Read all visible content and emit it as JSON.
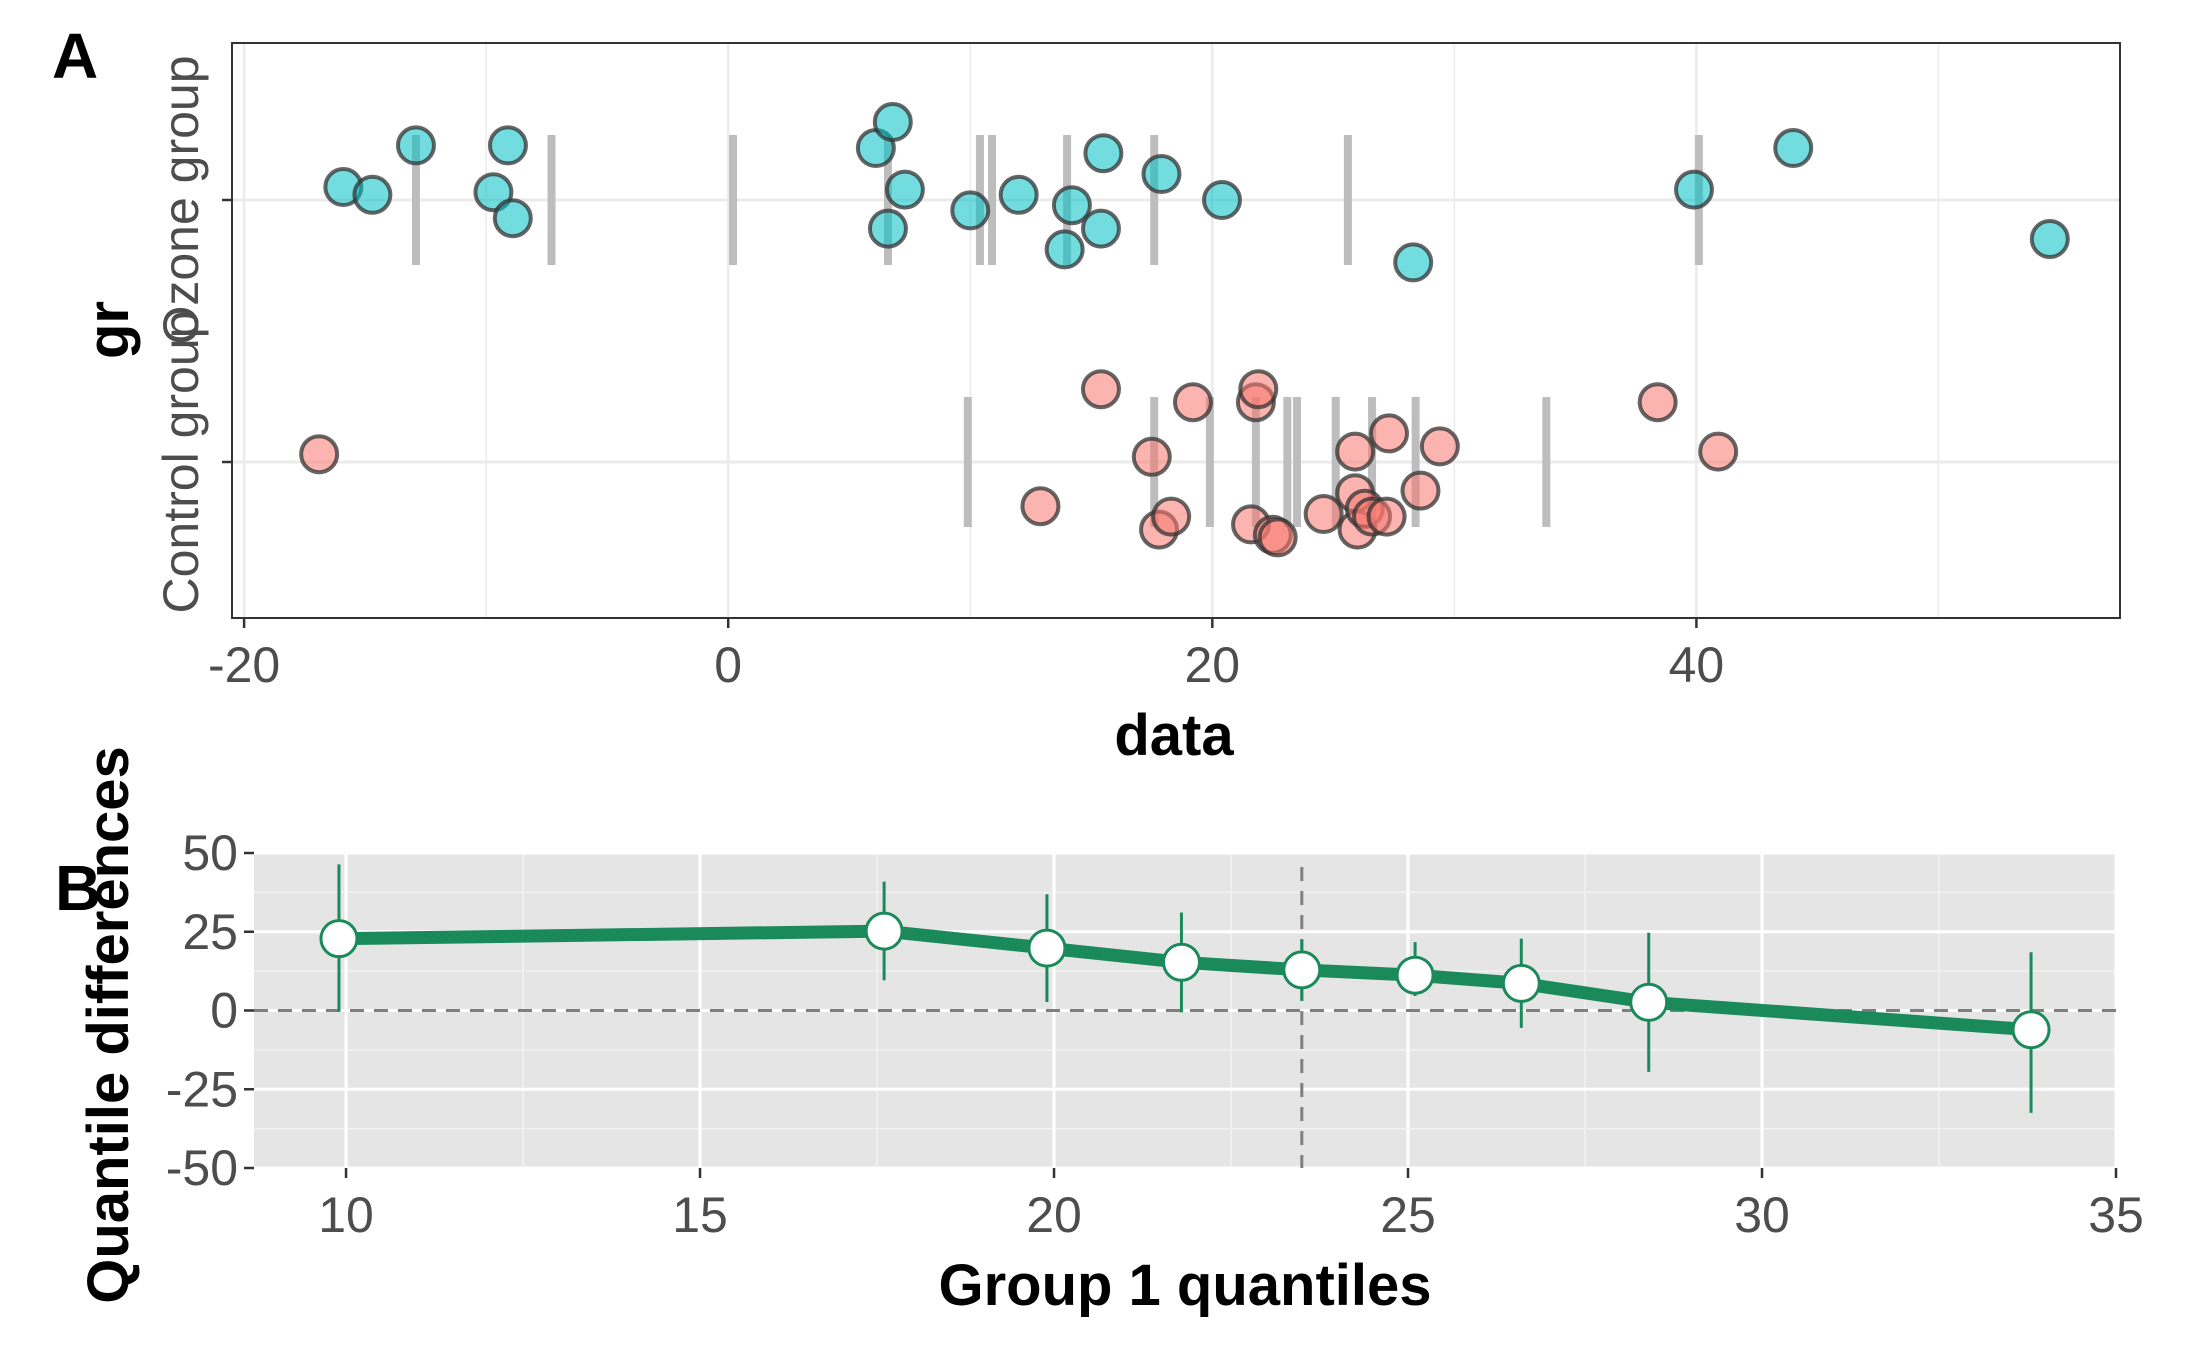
{
  "chart_data": [
    {
      "panel": "A",
      "type": "scatter",
      "xlabel": "data",
      "ylabel": "gr",
      "categories": [
        "Control group",
        "Ozone group"
      ],
      "xlim": [
        -20.5,
        57.5
      ],
      "xticks": [
        -20,
        0,
        20,
        40
      ],
      "grid": true,
      "series": [
        {
          "name": "Control group",
          "color": "#F8766D",
          "x": [
            -16.9,
            12.9,
            15.4,
            17.5,
            17.8,
            18.3,
            19.2,
            21.6,
            21.8,
            21.9,
            22.5,
            22.7,
            24.6,
            25.9,
            25.9,
            26.0,
            26.3,
            26.6,
            27.2,
            27.3,
            28.6,
            29.4,
            38.4,
            40.9
          ],
          "y": [
            0.03,
            -0.17,
            0.28,
            0.02,
            -0.26,
            -0.21,
            0.23,
            -0.24,
            0.23,
            0.28,
            -0.28,
            -0.29,
            -0.2,
            0.04,
            -0.12,
            -0.26,
            -0.18,
            -0.21,
            -0.21,
            0.11,
            -0.11,
            0.06,
            0.23,
            0.04
          ]
        },
        {
          "name": "Ozone group",
          "color": "#00BFC4",
          "x": [
            -15.9,
            -14.7,
            -12.9,
            -9.7,
            -9.1,
            -8.9,
            6.1,
            6.6,
            6.8,
            7.3,
            10.0,
            12.0,
            13.9,
            14.2,
            15.4,
            15.5,
            17.9,
            20.4,
            28.3,
            39.9,
            44.0,
            54.6
          ],
          "y": [
            0.05,
            0.02,
            0.21,
            0.03,
            0.21,
            -0.07,
            0.2,
            -0.11,
            0.3,
            0.04,
            -0.04,
            0.02,
            -0.19,
            -0.02,
            -0.11,
            0.18,
            0.1,
            0.0,
            -0.24,
            0.04,
            0.2,
            -0.15
          ]
        }
      ],
      "decile_marks": [
        {
          "group": "Ozone group",
          "x": [
            -12.9,
            -7.3,
            0.2,
            6.6,
            10.4,
            10.9,
            14.0,
            17.6,
            25.6,
            40.1
          ]
        },
        {
          "group": "Control group",
          "x": [
            9.9,
            17.6,
            19.9,
            21.8,
            23.1,
            23.5,
            25.1,
            26.6,
            28.4,
            33.8
          ]
        }
      ]
    },
    {
      "panel": "B",
      "type": "line",
      "xlabel": "Group 1 quantiles",
      "ylabel": "Quantile differences",
      "xlim": [
        8.7,
        35
      ],
      "ylim": [
        -50,
        50
      ],
      "xticks": [
        10,
        15,
        20,
        25,
        30,
        35
      ],
      "yticks": [
        50,
        25,
        0,
        -25,
        -50
      ],
      "reference_lines": {
        "horizontal": 0,
        "vertical": 23.5
      },
      "series": [
        {
          "color": "#1B8A5A",
          "x": [
            9.9,
            17.6,
            19.9,
            21.8,
            23.5,
            25.1,
            26.6,
            28.4,
            33.8
          ],
          "y": [
            22.8,
            25.2,
            19.8,
            15.3,
            12.9,
            11.2,
            8.6,
            2.6,
            -6.1
          ],
          "ci_low": [
            -0.4,
            9.6,
            2.7,
            -0.6,
            3.1,
            4.6,
            -5.5,
            -19.5,
            -32.5
          ],
          "ci_high": [
            46.4,
            40.9,
            36.9,
            31.1,
            22.6,
            21.7,
            22.8,
            24.7,
            18.5
          ]
        }
      ]
    }
  ],
  "panelA": {
    "letter": "A",
    "xlabel": "data",
    "ylabel": "gr",
    "ytick_labels": [
      "Control group",
      "Ozone group"
    ],
    "xtick_labels": [
      "-20",
      "0",
      "20",
      "40"
    ]
  },
  "panelB": {
    "letter": "B",
    "xlabel": "Group 1 quantiles",
    "ylabel": "Quantile differences",
    "xtick_labels": [
      "10",
      "15",
      "20",
      "25",
      "30",
      "35"
    ],
    "ytick_labels": [
      "50",
      "25",
      "0",
      "-25",
      "-50"
    ]
  }
}
